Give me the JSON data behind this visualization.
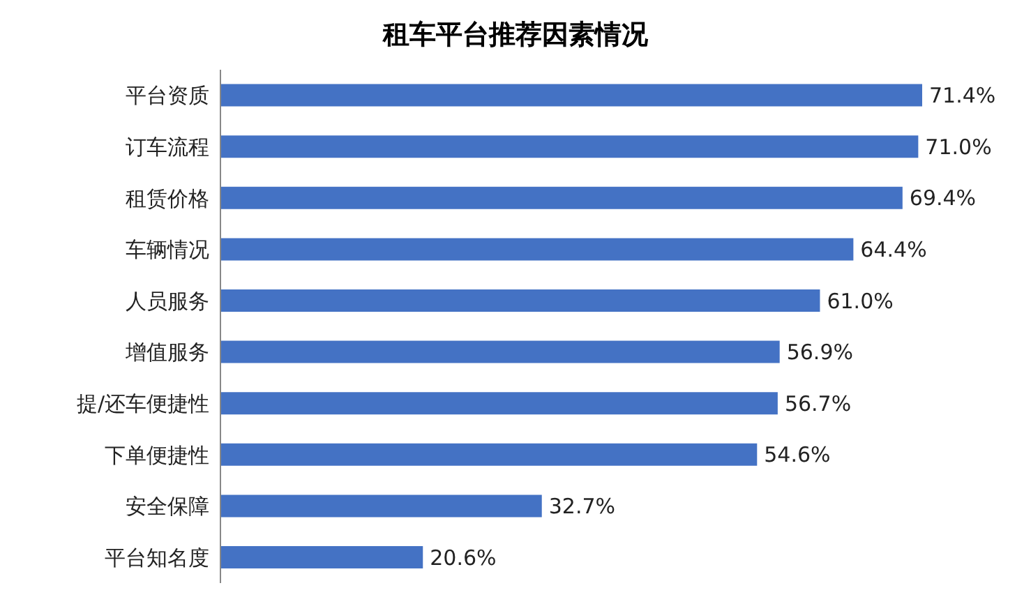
{
  "chart_data": {
    "type": "bar",
    "orientation": "horizontal",
    "title": "租车平台推荐因素情况",
    "categories": [
      "平台资质",
      "订车流程",
      "租赁价格",
      "车辆情况",
      "人员服务",
      "增值服务",
      "提/还车便捷性",
      "下单便捷性",
      "安全保障",
      "平台知名度"
    ],
    "values": [
      71.4,
      71.0,
      69.4,
      64.4,
      61.0,
      56.9,
      56.7,
      54.6,
      32.7,
      20.6
    ],
    "value_labels": [
      "71.4%",
      "71.0%",
      "69.4%",
      "64.4%",
      "61.0%",
      "56.9%",
      "56.7%",
      "54.6%",
      "32.7%",
      "20.6%"
    ],
    "color": "#4472c4",
    "tick_labels": "y",
    "grid": false,
    "legend": false
  }
}
